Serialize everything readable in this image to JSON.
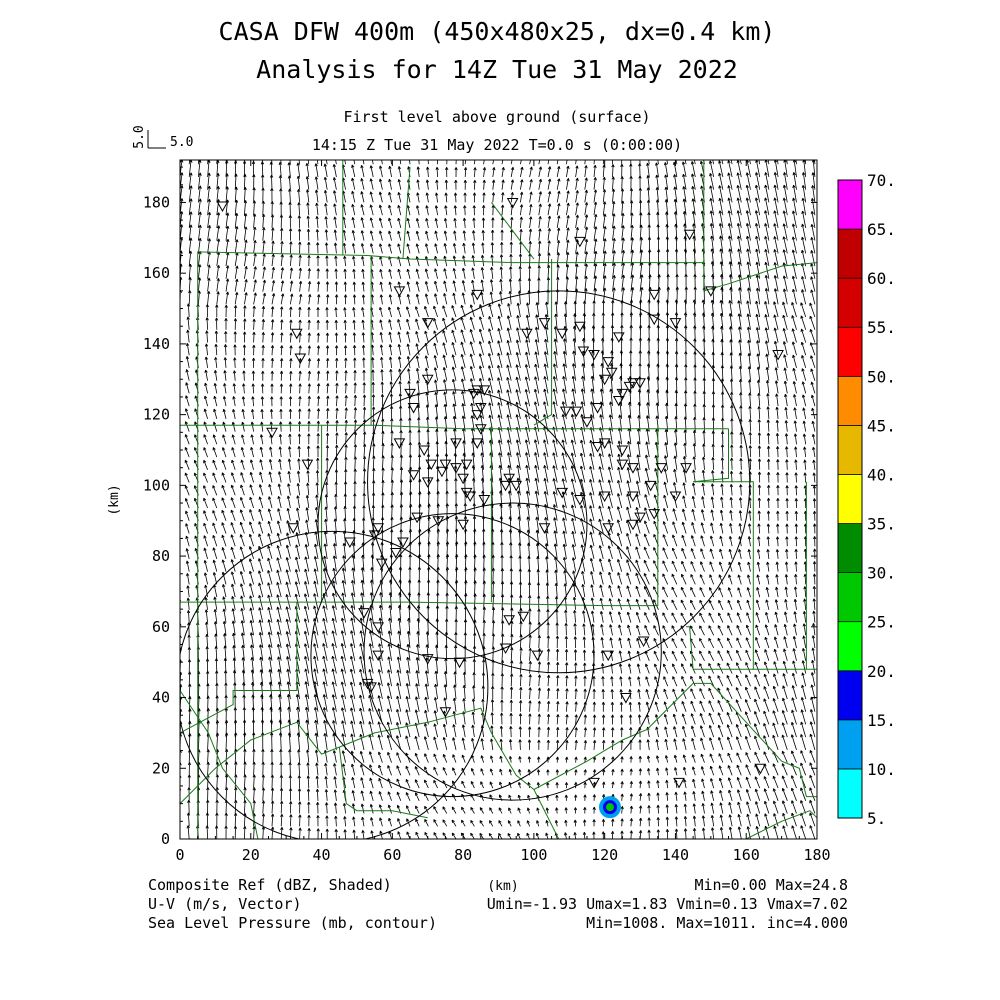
{
  "title_line1": "CASA DFW 400m (450x480x25, dx=0.4 km)",
  "title_line2": "Analysis for 14Z Tue 31 May 2022",
  "subtitle_level": "First level above ground (surface)",
  "subtitle_time": "14:15 Z Tue 31 May 2022    T=0.0 s (0:00:00)",
  "ref_vector": {
    "rotated_label": "5.0",
    "label": "5.0"
  },
  "footer": {
    "field1": "Composite Ref (dBZ, Shaded)",
    "field1_stats": "Min=0.00 Max=24.8",
    "field2": "U-V (m/s, Vector)",
    "field2_stats": "Umin=-1.93 Umax=1.83 Vmin=0.13 Vmax=7.02",
    "field3": "Sea Level Pressure (mb, contour)",
    "field3_stats": "Min=1008. Max=1011. inc=4.000"
  },
  "colors": {
    "boundary": "#1a7a1a",
    "colorbar": [
      "#00ffff",
      "#00a0f0",
      "#0000f0",
      "#00ff00",
      "#00c800",
      "#008c00",
      "#ffff00",
      "#e6b800",
      "#ff8c00",
      "#ff0000",
      "#d40000",
      "#c00000",
      "#ff00ff"
    ]
  },
  "colorbar_labels": [
    "5.",
    "10.",
    "15.",
    "20.",
    "25.",
    "30.",
    "35.",
    "40.",
    "45.",
    "50.",
    "55.",
    "60.",
    "65.",
    "70."
  ],
  "chart_data": {
    "type": "map",
    "xlabel": "(km)",
    "ylabel": "(km)",
    "xlim": [
      0,
      180
    ],
    "ylim": [
      0,
      192
    ],
    "xticks": [
      0,
      20,
      40,
      60,
      80,
      100,
      120,
      140,
      160,
      180
    ],
    "yticks": [
      0,
      20,
      40,
      60,
      80,
      100,
      120,
      140,
      160,
      180
    ],
    "radar_ranges": [
      {
        "cx": 107,
        "cy": 101,
        "r": 54
      },
      {
        "cx": 77,
        "cy": 89,
        "r": 38
      },
      {
        "cx": 94,
        "cy": 53,
        "r": 42
      },
      {
        "cx": 43,
        "cy": 43,
        "r": 44
      },
      {
        "cx": 77,
        "cy": 52,
        "r": 40
      }
    ],
    "reflectivity_echo": {
      "x": 121.5,
      "y": 9,
      "dbz": 24.8
    },
    "stations": [
      [
        12,
        179
      ],
      [
        33,
        143
      ],
      [
        34,
        136
      ],
      [
        26,
        115
      ],
      [
        36,
        106
      ],
      [
        32,
        88
      ],
      [
        62,
        155
      ],
      [
        70,
        146
      ],
      [
        84,
        154
      ],
      [
        94,
        180
      ],
      [
        113,
        169
      ],
      [
        144,
        171
      ],
      [
        150,
        155
      ],
      [
        134,
        154
      ],
      [
        140,
        146
      ],
      [
        134,
        147
      ],
      [
        103,
        146
      ],
      [
        108,
        143
      ],
      [
        113,
        145
      ],
      [
        124,
        142
      ],
      [
        98,
        143
      ],
      [
        114,
        138
      ],
      [
        117,
        137
      ],
      [
        121,
        135
      ],
      [
        122,
        132
      ],
      [
        120,
        130
      ],
      [
        128,
        129
      ],
      [
        130,
        129
      ],
      [
        127,
        128
      ],
      [
        125,
        126
      ],
      [
        124,
        124
      ],
      [
        118,
        122
      ],
      [
        115,
        118
      ],
      [
        112,
        121
      ],
      [
        109,
        121
      ],
      [
        120,
        112
      ],
      [
        118,
        111
      ],
      [
        125,
        110
      ],
      [
        128,
        105
      ],
      [
        125,
        106
      ],
      [
        136,
        105
      ],
      [
        143,
        105
      ],
      [
        140,
        97
      ],
      [
        133,
        100
      ],
      [
        128,
        97
      ],
      [
        120,
        97
      ],
      [
        113,
        96
      ],
      [
        108,
        98
      ],
      [
        134,
        92
      ],
      [
        130,
        91
      ],
      [
        128,
        89
      ],
      [
        121,
        88
      ],
      [
        103,
        88
      ],
      [
        95,
        100
      ],
      [
        93,
        102
      ],
      [
        92,
        100
      ],
      [
        86,
        96
      ],
      [
        82,
        97
      ],
      [
        81,
        98
      ],
      [
        80,
        102
      ],
      [
        78,
        112
      ],
      [
        78,
        105
      ],
      [
        81,
        106
      ],
      [
        84,
        112
      ],
      [
        85,
        116
      ],
      [
        84,
        120
      ],
      [
        85,
        122
      ],
      [
        83,
        126
      ],
      [
        84,
        127
      ],
      [
        86,
        127
      ],
      [
        70,
        130
      ],
      [
        65,
        126
      ],
      [
        66,
        122
      ],
      [
        62,
        112
      ],
      [
        69,
        110
      ],
      [
        71,
        106
      ],
      [
        70,
        101
      ],
      [
        66,
        103
      ],
      [
        75,
        106
      ],
      [
        74,
        104
      ],
      [
        67,
        91
      ],
      [
        56,
        88
      ],
      [
        55,
        86
      ],
      [
        57,
        78
      ],
      [
        48,
        84
      ],
      [
        63,
        84
      ],
      [
        61,
        81
      ],
      [
        80,
        89
      ],
      [
        73,
        90
      ],
      [
        52,
        64
      ],
      [
        56,
        52
      ],
      [
        56,
        60
      ],
      [
        70,
        51
      ],
      [
        79,
        50
      ],
      [
        92,
        54
      ],
      [
        101,
        52
      ],
      [
        93,
        62
      ],
      [
        97,
        63
      ],
      [
        121,
        52
      ],
      [
        131,
        56
      ],
      [
        126,
        40
      ],
      [
        75,
        36
      ],
      [
        53,
        44
      ],
      [
        54,
        43
      ],
      [
        117,
        16
      ],
      [
        141,
        16
      ],
      [
        164,
        20
      ],
      [
        169,
        137
      ]
    ]
  }
}
